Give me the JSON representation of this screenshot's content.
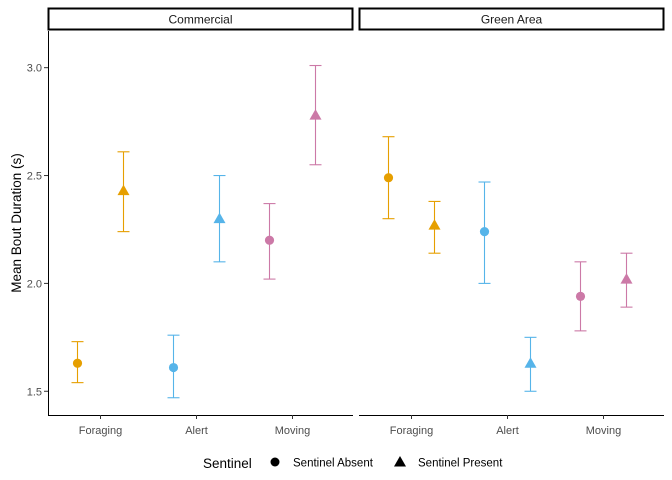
{
  "chart_data": {
    "type": "scatter",
    "ylabel": "Mean Bout Duration (s)",
    "xlabel": "",
    "ylim": [
      1.39,
      3.17
    ],
    "yticks": [
      1.5,
      2.0,
      2.5,
      3.0
    ],
    "ytick_labels": [
      "1.5",
      "2.0",
      "2.5",
      "3.0"
    ],
    "categories": [
      "Foraging",
      "Alert",
      "Moving"
    ],
    "category_colors": {
      "Foraging": "#E69F00",
      "Alert": "#56B4E9",
      "Moving": "#CC79A7"
    },
    "legend": {
      "title": "Sentinel",
      "position": "bottom",
      "entries": [
        {
          "label": "Sentinel Absent",
          "shape": "circle"
        },
        {
          "label": "Sentinel Present",
          "shape": "triangle"
        }
      ]
    },
    "grid": false,
    "error_bars": true,
    "panels": [
      {
        "label": "Commercial",
        "points": [
          {
            "category": "Foraging",
            "sentinel": "Sentinel Absent",
            "mean": 1.63,
            "lower": 1.54,
            "upper": 1.73
          },
          {
            "category": "Foraging",
            "sentinel": "Sentinel Present",
            "mean": 2.43,
            "lower": 2.24,
            "upper": 2.61
          },
          {
            "category": "Alert",
            "sentinel": "Sentinel Absent",
            "mean": 1.61,
            "lower": 1.47,
            "upper": 1.76
          },
          {
            "category": "Alert",
            "sentinel": "Sentinel Present",
            "mean": 2.3,
            "lower": 2.1,
            "upper": 2.5
          },
          {
            "category": "Moving",
            "sentinel": "Sentinel Absent",
            "mean": 2.2,
            "lower": 2.02,
            "upper": 2.37
          },
          {
            "category": "Moving",
            "sentinel": "Sentinel Present",
            "mean": 2.78,
            "lower": 2.55,
            "upper": 3.01
          }
        ]
      },
      {
        "label": "Green Area",
        "points": [
          {
            "category": "Foraging",
            "sentinel": "Sentinel Absent",
            "mean": 2.49,
            "lower": 2.3,
            "upper": 2.68
          },
          {
            "category": "Foraging",
            "sentinel": "Sentinel Present",
            "mean": 2.27,
            "lower": 2.14,
            "upper": 2.38
          },
          {
            "category": "Alert",
            "sentinel": "Sentinel Absent",
            "mean": 2.24,
            "lower": 2.0,
            "upper": 2.47
          },
          {
            "category": "Alert",
            "sentinel": "Sentinel Present",
            "mean": 1.63,
            "lower": 1.5,
            "upper": 1.75
          },
          {
            "category": "Moving",
            "sentinel": "Sentinel Absent",
            "mean": 1.94,
            "lower": 1.78,
            "upper": 2.1
          },
          {
            "category": "Moving",
            "sentinel": "Sentinel Present",
            "mean": 2.02,
            "lower": 1.89,
            "upper": 2.14
          }
        ]
      }
    ]
  }
}
